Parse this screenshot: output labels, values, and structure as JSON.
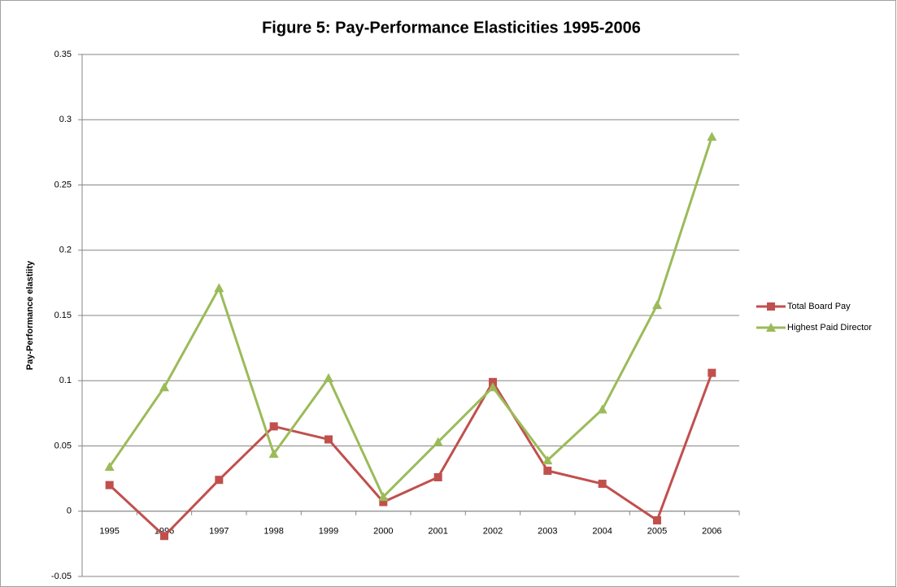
{
  "chart_data": {
    "type": "line",
    "title": "Figure 5: Pay-Performance Elasticities 1995-2006",
    "y_label": "Pay-Performance elastiity",
    "categories": [
      "1995",
      "1996",
      "1997",
      "1998",
      "1999",
      "2000",
      "2001",
      "2002",
      "2003",
      "2004",
      "2005",
      "2006"
    ],
    "series": [
      {
        "name": "Total Board Pay",
        "color": "#c0504d",
        "marker": "square",
        "values": [
          0.02,
          -0.019,
          0.024,
          0.065,
          0.055,
          0.007,
          0.026,
          0.099,
          0.031,
          0.021,
          -0.007,
          0.106
        ]
      },
      {
        "name": "Highest Paid Director",
        "color": "#9bbb59",
        "marker": "triangle",
        "values": [
          0.034,
          0.095,
          0.171,
          0.044,
          0.102,
          0.011,
          0.053,
          0.095,
          0.039,
          0.078,
          0.158,
          0.287
        ]
      }
    ],
    "ylim": [
      -0.05,
      0.35
    ],
    "yticks": [
      -0.05,
      0,
      0.05,
      0.1,
      0.15,
      0.2,
      0.25,
      0.3,
      0.35
    ],
    "grid": true,
    "legend": "right"
  }
}
